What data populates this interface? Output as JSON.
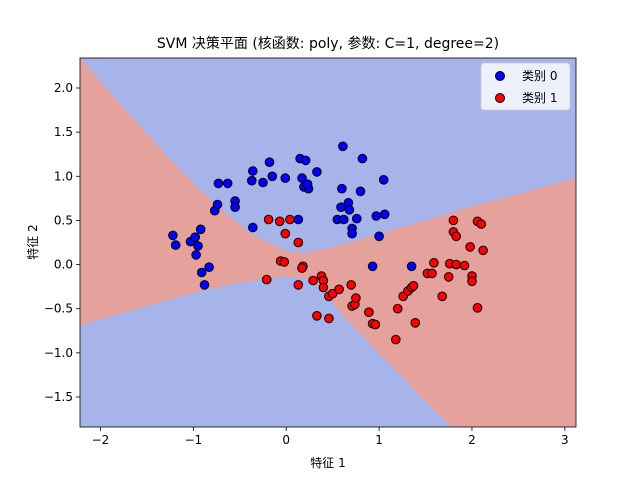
{
  "chart_data": {
    "type": "scatter",
    "title": "SVM 决策平面 (核函数: poly, 参数: C=1, degree=2)",
    "xlabel": "特征 1",
    "ylabel": "特征 2",
    "xlim": [
      -2.22,
      3.12
    ],
    "ylim": [
      -1.84,
      2.34
    ],
    "xticks": [
      -2,
      -1,
      0,
      1,
      2,
      3
    ],
    "yticks": [
      -1.5,
      -1.0,
      -0.5,
      0.0,
      0.5,
      1.0,
      1.5,
      2.0
    ],
    "xtick_labels": [
      "−2",
      "−1",
      "0",
      "1",
      "2",
      "3"
    ],
    "ytick_labels": [
      "−1.5",
      "−1.0",
      "−0.5",
      "0.0",
      "0.5",
      "1.0",
      "1.5",
      "2.0"
    ],
    "legend_position": "top-right",
    "region_colors": {
      "class0": "#a7b4ea",
      "class1": "#e5a29c"
    },
    "decision_boundary": {
      "upper": [
        [
          -2.22,
          2.34
        ],
        [
          -1.9,
          1.95
        ],
        [
          -1.6,
          1.6
        ],
        [
          -1.3,
          1.25
        ],
        [
          -1.0,
          0.92
        ],
        [
          -0.7,
          0.62
        ],
        [
          -0.4,
          0.37
        ],
        [
          -0.2,
          0.25
        ],
        [
          0.0,
          0.15
        ],
        [
          0.2,
          0.13
        ],
        [
          0.5,
          0.2
        ],
        [
          1.0,
          0.35
        ],
        [
          1.5,
          0.5
        ],
        [
          2.0,
          0.66
        ],
        [
          2.5,
          0.8
        ],
        [
          3.12,
          0.98
        ]
      ],
      "lower": [
        [
          -2.22,
          -0.69
        ],
        [
          -1.8,
          -0.56
        ],
        [
          -1.4,
          -0.44
        ],
        [
          -1.0,
          -0.32
        ],
        [
          -0.6,
          -0.22
        ],
        [
          -0.2,
          -0.16
        ],
        [
          0.0,
          -0.14
        ],
        [
          0.2,
          -0.16
        ],
        [
          0.4,
          -0.28
        ],
        [
          0.6,
          -0.56
        ],
        [
          0.9,
          -0.9
        ],
        [
          1.2,
          -1.22
        ],
        [
          1.5,
          -1.55
        ],
        [
          1.78,
          -1.84
        ]
      ]
    },
    "series": [
      {
        "name": "类别 0",
        "color": "#0000ff",
        "points": [
          [
            -1.22,
            0.33
          ],
          [
            -1.19,
            0.22
          ],
          [
            -1.03,
            0.26
          ],
          [
            -0.98,
            0.31
          ],
          [
            -0.92,
            0.4
          ],
          [
            -0.95,
            0.21
          ],
          [
            -0.97,
            0.11
          ],
          [
            -0.91,
            -0.09
          ],
          [
            -0.83,
            -0.03
          ],
          [
            -0.88,
            -0.23
          ],
          [
            -0.77,
            0.61
          ],
          [
            -0.74,
            0.68
          ],
          [
            -0.63,
            0.92
          ],
          [
            -0.73,
            0.92
          ],
          [
            -0.55,
            0.72
          ],
          [
            -0.55,
            0.65
          ],
          [
            -0.36,
            1.06
          ],
          [
            -0.37,
            0.95
          ],
          [
            -0.25,
            0.93
          ],
          [
            -0.15,
            1.0
          ],
          [
            -0.18,
            1.16
          ],
          [
            -0.01,
            0.98
          ],
          [
            0.15,
            1.2
          ],
          [
            0.21,
            1.18
          ],
          [
            0.17,
            0.98
          ],
          [
            0.19,
            0.88
          ],
          [
            0.24,
            0.86
          ],
          [
            0.23,
            0.91
          ],
          [
            0.33,
            1.05
          ],
          [
            0.13,
            0.51
          ],
          [
            -0.36,
            0.42
          ],
          [
            0.61,
            1.34
          ],
          [
            0.6,
            0.86
          ],
          [
            0.59,
            0.65
          ],
          [
            0.55,
            0.51
          ],
          [
            0.62,
            0.51
          ],
          [
            0.67,
            0.7
          ],
          [
            0.68,
            0.62
          ],
          [
            0.71,
            0.41
          ],
          [
            0.71,
            0.35
          ],
          [
            0.76,
            0.52
          ],
          [
            0.82,
            1.2
          ],
          [
            0.8,
            0.83
          ],
          [
            0.97,
            0.55
          ],
          [
            1.05,
            0.96
          ],
          [
            1.06,
            0.57
          ],
          [
            1.0,
            0.32
          ],
          [
            0.93,
            -0.02
          ],
          [
            1.35,
            -0.02
          ]
        ]
      },
      {
        "name": "类别 1",
        "color": "#ff0000",
        "points": [
          [
            -0.19,
            0.51
          ],
          [
            -0.07,
            0.49
          ],
          [
            0.04,
            0.51
          ],
          [
            -0.01,
            0.35
          ],
          [
            0.13,
            0.25
          ],
          [
            -0.06,
            0.04
          ],
          [
            -0.02,
            0.03
          ],
          [
            0.18,
            -0.02
          ],
          [
            0.17,
            -0.04
          ],
          [
            -0.21,
            -0.17
          ],
          [
            0.13,
            -0.23
          ],
          [
            0.29,
            -0.18
          ],
          [
            0.38,
            -0.13
          ],
          [
            0.4,
            -0.18
          ],
          [
            0.4,
            -0.26
          ],
          [
            0.46,
            -0.36
          ],
          [
            0.5,
            -0.33
          ],
          [
            0.33,
            -0.58
          ],
          [
            0.46,
            -0.61
          ],
          [
            0.57,
            -0.28
          ],
          [
            0.7,
            -0.23
          ],
          [
            0.71,
            -0.47
          ],
          [
            0.74,
            -0.45
          ],
          [
            0.75,
            -0.38
          ],
          [
            0.89,
            -0.54
          ],
          [
            0.93,
            -0.67
          ],
          [
            0.96,
            -0.68
          ],
          [
            1.18,
            -0.85
          ],
          [
            1.2,
            -0.5
          ],
          [
            1.26,
            -0.36
          ],
          [
            1.31,
            -0.3
          ],
          [
            1.35,
            -0.26
          ],
          [
            1.39,
            -0.66
          ],
          [
            1.37,
            -0.24
          ],
          [
            1.52,
            -0.1
          ],
          [
            1.57,
            -0.1
          ],
          [
            1.59,
            0.02
          ],
          [
            1.68,
            -0.36
          ],
          [
            1.76,
            0.01
          ],
          [
            1.75,
            -0.14
          ],
          [
            1.8,
            0.5
          ],
          [
            1.8,
            0.37
          ],
          [
            1.83,
            0.32
          ],
          [
            1.83,
            0.0
          ],
          [
            1.92,
            -0.01
          ],
          [
            1.98,
            0.2
          ],
          [
            2.0,
            -0.13
          ],
          [
            2.0,
            -0.19
          ],
          [
            2.06,
            0.49
          ],
          [
            2.1,
            0.46
          ],
          [
            2.12,
            0.16
          ],
          [
            2.06,
            -0.49
          ]
        ]
      }
    ]
  }
}
